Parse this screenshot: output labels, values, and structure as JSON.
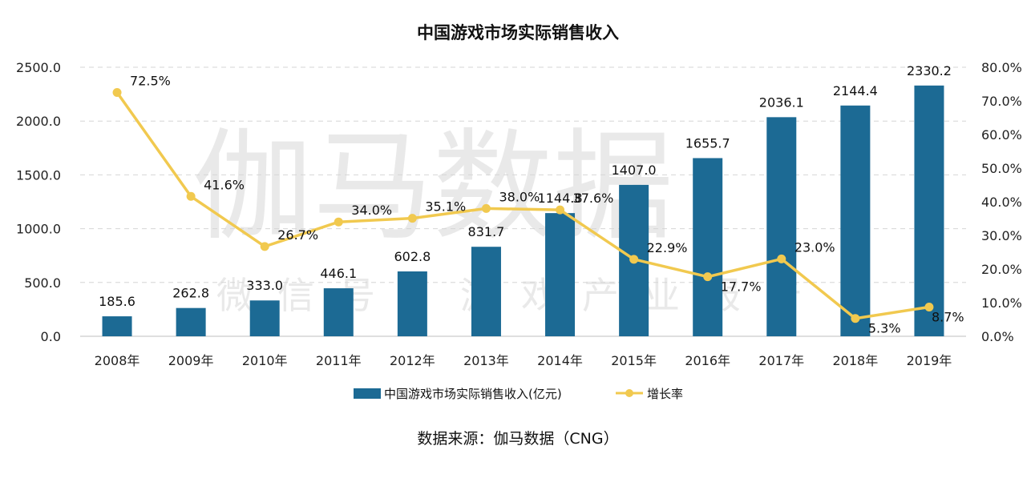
{
  "chart_data": {
    "type": "bar",
    "title": "中国游戏市场实际销售收入",
    "categories": [
      "2008年",
      "2009年",
      "2010年",
      "2011年",
      "2012年",
      "2013年",
      "2014年",
      "2015年",
      "2016年",
      "2017年",
      "2018年",
      "2019年"
    ],
    "series": [
      {
        "name": "中国游戏市场实际销售收入(亿元)",
        "type": "bar",
        "axis": "left",
        "color": "#1C6A94",
        "values": [
          185.6,
          262.8,
          333.0,
          446.1,
          602.8,
          831.7,
          1144.8,
          1407.0,
          1655.7,
          2036.1,
          2144.4,
          2330.2
        ],
        "labels": [
          "185.6",
          "262.8",
          "333.0",
          "446.1",
          "602.8",
          "831.7",
          "1144.8",
          "1407.0",
          "1655.7",
          "2036.1",
          "2144.4",
          "2330.2"
        ]
      },
      {
        "name": "增长率",
        "type": "line",
        "axis": "right",
        "color": "#F1C94F",
        "values": [
          72.5,
          41.6,
          26.7,
          34.0,
          35.1,
          38.0,
          37.6,
          22.9,
          17.7,
          23.0,
          5.3,
          8.7
        ],
        "labels": [
          "72.5%",
          "41.6%",
          "26.7%",
          "34.0%",
          "35.1%",
          "38.0%",
          "37.6%",
          "22.9%",
          "17.7%",
          "23.0%",
          "5.3%",
          "8.7%"
        ]
      }
    ],
    "y_left": {
      "min": 0,
      "max": 2500,
      "ticks": [
        "0.0",
        "500.0",
        "1000.0",
        "1500.0",
        "2000.0",
        "2500.0"
      ]
    },
    "y_right": {
      "min": 0,
      "max": 80,
      "ticks": [
        "0.0%",
        "10.0%",
        "20.0%",
        "30.0%",
        "40.0%",
        "50.0%",
        "60.0%",
        "70.0%",
        "80.0%"
      ]
    },
    "grid": "horizontal dashed",
    "legend_position": "bottom"
  },
  "watermark": {
    "main": "伽马数据",
    "sub": "微信号：游戏产业报告"
  },
  "source_note": "数据来源：伽马数据（CNG）"
}
